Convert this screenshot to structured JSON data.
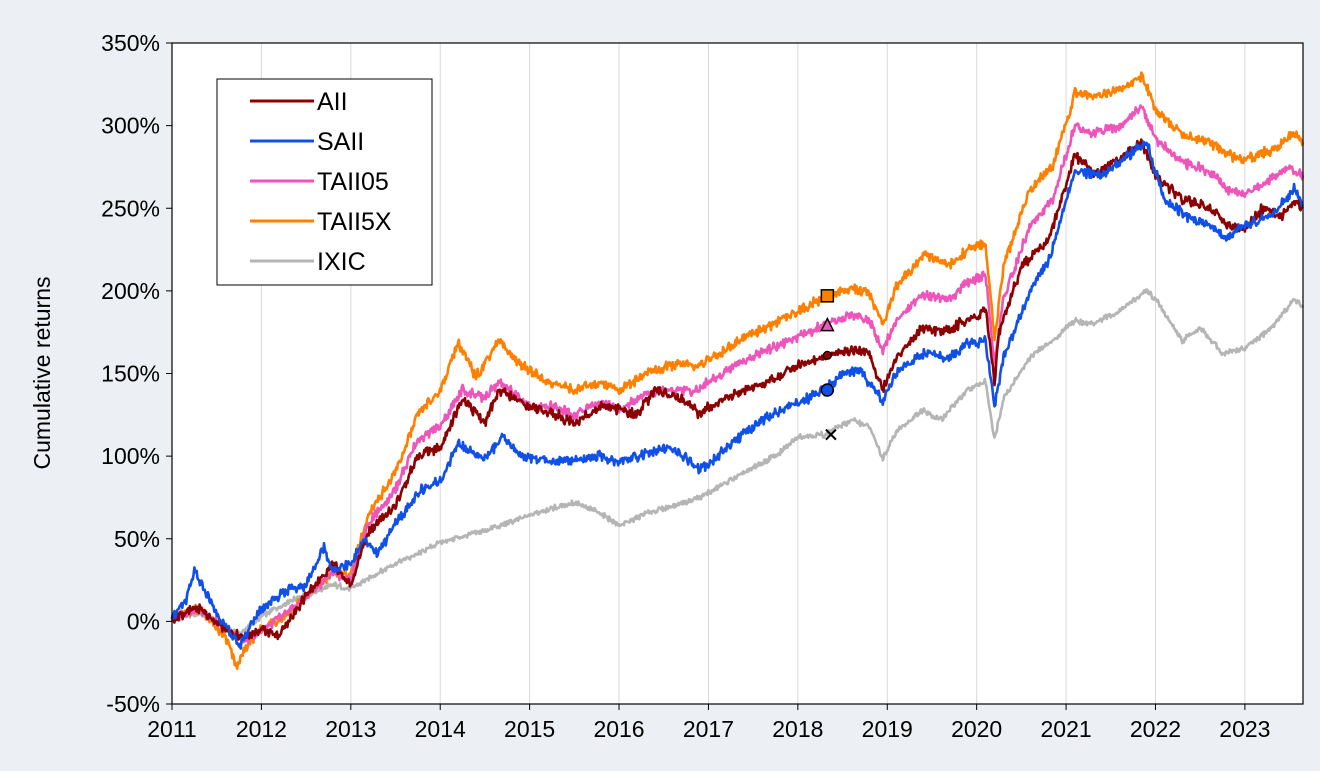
{
  "chart_data": {
    "type": "line",
    "title": "",
    "xlabel": "",
    "ylabel": "Cumulative returns",
    "xlim": [
      2011.0,
      2023.65
    ],
    "ylim": [
      -50,
      350
    ],
    "y_ticks": [
      -50,
      0,
      50,
      100,
      150,
      200,
      250,
      300,
      350
    ],
    "y_tick_labels": [
      "-50%",
      "0%",
      "50%",
      "100%",
      "150%",
      "200%",
      "250%",
      "300%",
      "350%"
    ],
    "x_ticks": [
      2011,
      2012,
      2013,
      2014,
      2015,
      2016,
      2017,
      2018,
      2019,
      2020,
      2021,
      2022,
      2023
    ],
    "x_tick_labels": [
      "2011",
      "2012",
      "2013",
      "2014",
      "2015",
      "2016",
      "2017",
      "2018",
      "2019",
      "2020",
      "2021",
      "2022",
      "2023"
    ],
    "grid": "vertical",
    "legend_position": "top-left",
    "series": [
      {
        "name": "AII",
        "color": "#8b0000",
        "marker": "circle-small",
        "points": [
          [
            2011.0,
            2
          ],
          [
            2011.3,
            8
          ],
          [
            2011.6,
            -5
          ],
          [
            2011.8,
            -10
          ],
          [
            2012.0,
            -5
          ],
          [
            2012.2,
            -8
          ],
          [
            2012.5,
            15
          ],
          [
            2012.8,
            35
          ],
          [
            2013.0,
            22
          ],
          [
            2013.2,
            55
          ],
          [
            2013.5,
            70
          ],
          [
            2013.75,
            100
          ],
          [
            2014.0,
            105
          ],
          [
            2014.25,
            135
          ],
          [
            2014.5,
            120
          ],
          [
            2014.65,
            140
          ],
          [
            2015.0,
            130
          ],
          [
            2015.3,
            125
          ],
          [
            2015.5,
            120
          ],
          [
            2015.8,
            130
          ],
          [
            2016.0,
            128
          ],
          [
            2016.2,
            125
          ],
          [
            2016.4,
            140
          ],
          [
            2016.7,
            135
          ],
          [
            2016.9,
            125
          ],
          [
            2017.0,
            130
          ],
          [
            2017.4,
            140
          ],
          [
            2017.8,
            148
          ],
          [
            2018.0,
            155
          ],
          [
            2018.3,
            160
          ],
          [
            2018.6,
            165
          ],
          [
            2018.8,
            162
          ],
          [
            2018.95,
            140
          ],
          [
            2019.1,
            160
          ],
          [
            2019.4,
            178
          ],
          [
            2019.6,
            175
          ],
          [
            2019.8,
            180
          ],
          [
            2020.0,
            185
          ],
          [
            2020.1,
            188
          ],
          [
            2020.2,
            145
          ],
          [
            2020.25,
            175
          ],
          [
            2020.5,
            215
          ],
          [
            2020.8,
            230
          ],
          [
            2021.1,
            282
          ],
          [
            2021.3,
            272
          ],
          [
            2021.6,
            280
          ],
          [
            2021.85,
            290
          ],
          [
            2022.0,
            270
          ],
          [
            2022.3,
            255
          ],
          [
            2022.6,
            250
          ],
          [
            2022.8,
            240
          ],
          [
            2023.0,
            238
          ],
          [
            2023.2,
            250
          ],
          [
            2023.4,
            245
          ],
          [
            2023.55,
            255
          ],
          [
            2023.65,
            250
          ]
        ]
      },
      {
        "name": "SAII",
        "color": "#1050e8",
        "marker": "circle",
        "points": [
          [
            2011.0,
            2
          ],
          [
            2011.15,
            12
          ],
          [
            2011.25,
            30
          ],
          [
            2011.5,
            5
          ],
          [
            2011.75,
            -15
          ],
          [
            2012.0,
            8
          ],
          [
            2012.25,
            18
          ],
          [
            2012.5,
            22
          ],
          [
            2012.7,
            45
          ],
          [
            2012.8,
            30
          ],
          [
            2013.0,
            35
          ],
          [
            2013.15,
            50
          ],
          [
            2013.3,
            40
          ],
          [
            2013.5,
            60
          ],
          [
            2013.8,
            80
          ],
          [
            2014.0,
            85
          ],
          [
            2014.2,
            108
          ],
          [
            2014.5,
            98
          ],
          [
            2014.7,
            112
          ],
          [
            2014.9,
            100
          ],
          [
            2015.2,
            97
          ],
          [
            2015.5,
            98
          ],
          [
            2015.8,
            100
          ],
          [
            2016.0,
            96
          ],
          [
            2016.3,
            102
          ],
          [
            2016.6,
            105
          ],
          [
            2016.9,
            92
          ],
          [
            2017.0,
            95
          ],
          [
            2017.3,
            110
          ],
          [
            2017.7,
            125
          ],
          [
            2018.0,
            132
          ],
          [
            2018.3,
            140
          ],
          [
            2018.5,
            150
          ],
          [
            2018.7,
            152
          ],
          [
            2018.95,
            133
          ],
          [
            2019.1,
            150
          ],
          [
            2019.4,
            162
          ],
          [
            2019.7,
            160
          ],
          [
            2019.9,
            168
          ],
          [
            2020.1,
            170
          ],
          [
            2020.2,
            130
          ],
          [
            2020.3,
            160
          ],
          [
            2020.6,
            200
          ],
          [
            2020.8,
            218
          ],
          [
            2021.1,
            272
          ],
          [
            2021.4,
            270
          ],
          [
            2021.7,
            282
          ],
          [
            2021.9,
            290
          ],
          [
            2022.1,
            255
          ],
          [
            2022.35,
            245
          ],
          [
            2022.6,
            240
          ],
          [
            2022.8,
            232
          ],
          [
            2023.0,
            240
          ],
          [
            2023.3,
            245
          ],
          [
            2023.55,
            262
          ],
          [
            2023.65,
            252
          ]
        ]
      },
      {
        "name": "TAII05",
        "color": "#ee55bb",
        "marker": "triangle",
        "points": [
          [
            2011.0,
            2
          ],
          [
            2011.3,
            8
          ],
          [
            2011.6,
            -5
          ],
          [
            2011.8,
            -12
          ],
          [
            2012.0,
            -5
          ],
          [
            2012.3,
            5
          ],
          [
            2012.6,
            20
          ],
          [
            2012.8,
            30
          ],
          [
            2013.0,
            25
          ],
          [
            2013.2,
            60
          ],
          [
            2013.5,
            80
          ],
          [
            2013.75,
            110
          ],
          [
            2014.0,
            118
          ],
          [
            2014.25,
            140
          ],
          [
            2014.5,
            135
          ],
          [
            2014.65,
            145
          ],
          [
            2015.0,
            130
          ],
          [
            2015.3,
            130
          ],
          [
            2015.5,
            125
          ],
          [
            2015.8,
            133
          ],
          [
            2016.0,
            128
          ],
          [
            2016.3,
            138
          ],
          [
            2016.6,
            140
          ],
          [
            2016.9,
            140
          ],
          [
            2017.0,
            145
          ],
          [
            2017.4,
            158
          ],
          [
            2017.8,
            168
          ],
          [
            2018.0,
            172
          ],
          [
            2018.35,
            180
          ],
          [
            2018.6,
            186
          ],
          [
            2018.8,
            182
          ],
          [
            2018.95,
            165
          ],
          [
            2019.1,
            182
          ],
          [
            2019.4,
            198
          ],
          [
            2019.7,
            195
          ],
          [
            2019.9,
            205
          ],
          [
            2020.1,
            210
          ],
          [
            2020.2,
            155
          ],
          [
            2020.3,
            195
          ],
          [
            2020.6,
            240
          ],
          [
            2020.85,
            255
          ],
          [
            2021.1,
            300
          ],
          [
            2021.3,
            295
          ],
          [
            2021.6,
            300
          ],
          [
            2021.85,
            312
          ],
          [
            2022.0,
            292
          ],
          [
            2022.3,
            278
          ],
          [
            2022.6,
            272
          ],
          [
            2022.8,
            262
          ],
          [
            2023.0,
            258
          ],
          [
            2023.3,
            268
          ],
          [
            2023.5,
            275
          ],
          [
            2023.65,
            270
          ]
        ]
      },
      {
        "name": "TAII5X",
        "color": "#ff8000",
        "marker": "square",
        "points": [
          [
            2011.0,
            2
          ],
          [
            2011.3,
            8
          ],
          [
            2011.6,
            -10
          ],
          [
            2011.72,
            -27
          ],
          [
            2011.9,
            -10
          ],
          [
            2012.0,
            -5
          ],
          [
            2012.3,
            5
          ],
          [
            2012.6,
            20
          ],
          [
            2012.8,
            30
          ],
          [
            2013.0,
            28
          ],
          [
            2013.2,
            65
          ],
          [
            2013.5,
            90
          ],
          [
            2013.75,
            125
          ],
          [
            2014.0,
            140
          ],
          [
            2014.2,
            168
          ],
          [
            2014.4,
            148
          ],
          [
            2014.65,
            170
          ],
          [
            2014.9,
            155
          ],
          [
            2015.2,
            145
          ],
          [
            2015.5,
            140
          ],
          [
            2015.8,
            145
          ],
          [
            2016.0,
            140
          ],
          [
            2016.3,
            150
          ],
          [
            2016.6,
            155
          ],
          [
            2016.9,
            155
          ],
          [
            2017.0,
            158
          ],
          [
            2017.4,
            172
          ],
          [
            2017.8,
            182
          ],
          [
            2018.0,
            188
          ],
          [
            2018.35,
            197
          ],
          [
            2018.6,
            202
          ],
          [
            2018.8,
            198
          ],
          [
            2018.95,
            180
          ],
          [
            2019.1,
            202
          ],
          [
            2019.4,
            222
          ],
          [
            2019.7,
            215
          ],
          [
            2019.9,
            225
          ],
          [
            2020.1,
            228
          ],
          [
            2020.2,
            170
          ],
          [
            2020.3,
            215
          ],
          [
            2020.6,
            262
          ],
          [
            2020.85,
            275
          ],
          [
            2021.1,
            320
          ],
          [
            2021.3,
            318
          ],
          [
            2021.6,
            322
          ],
          [
            2021.85,
            330
          ],
          [
            2022.0,
            310
          ],
          [
            2022.3,
            295
          ],
          [
            2022.6,
            290
          ],
          [
            2022.8,
            282
          ],
          [
            2023.0,
            280
          ],
          [
            2023.3,
            285
          ],
          [
            2023.55,
            295
          ],
          [
            2023.65,
            290
          ]
        ]
      },
      {
        "name": "IXIC",
        "color": "#b5b5b5",
        "marker": "x",
        "points": [
          [
            2011.0,
            2
          ],
          [
            2011.3,
            5
          ],
          [
            2011.6,
            -3
          ],
          [
            2011.75,
            -8
          ],
          [
            2012.0,
            3
          ],
          [
            2012.3,
            12
          ],
          [
            2012.6,
            18
          ],
          [
            2012.8,
            22
          ],
          [
            2013.0,
            20
          ],
          [
            2013.5,
            35
          ],
          [
            2013.8,
            42
          ],
          [
            2014.0,
            48
          ],
          [
            2014.5,
            55
          ],
          [
            2014.9,
            62
          ],
          [
            2015.2,
            68
          ],
          [
            2015.5,
            72
          ],
          [
            2015.8,
            65
          ],
          [
            2016.0,
            58
          ],
          [
            2016.3,
            65
          ],
          [
            2016.6,
            70
          ],
          [
            2016.9,
            75
          ],
          [
            2017.0,
            78
          ],
          [
            2017.4,
            90
          ],
          [
            2017.8,
            102
          ],
          [
            2018.0,
            112
          ],
          [
            2018.3,
            113
          ],
          [
            2018.6,
            122
          ],
          [
            2018.8,
            118
          ],
          [
            2018.95,
            98
          ],
          [
            2019.1,
            115
          ],
          [
            2019.4,
            128
          ],
          [
            2019.6,
            122
          ],
          [
            2019.9,
            140
          ],
          [
            2020.1,
            145
          ],
          [
            2020.2,
            110
          ],
          [
            2020.3,
            135
          ],
          [
            2020.6,
            160
          ],
          [
            2020.85,
            170
          ],
          [
            2021.1,
            182
          ],
          [
            2021.3,
            180
          ],
          [
            2021.6,
            188
          ],
          [
            2021.9,
            200
          ],
          [
            2022.0,
            195
          ],
          [
            2022.3,
            170
          ],
          [
            2022.5,
            178
          ],
          [
            2022.75,
            162
          ],
          [
            2023.0,
            165
          ],
          [
            2023.3,
            178
          ],
          [
            2023.55,
            195
          ],
          [
            2023.65,
            190
          ]
        ]
      }
    ],
    "markers": [
      {
        "series": "TAII5X",
        "x": 2018.33,
        "y": 197
      },
      {
        "series": "TAII05",
        "x": 2018.33,
        "y": 179
      },
      {
        "series": "AII",
        "x": 2018.33,
        "y": 161
      },
      {
        "series": "SAII",
        "x": 2018.33,
        "y": 140
      },
      {
        "series": "IXIC",
        "x": 2018.37,
        "y": 113
      }
    ]
  }
}
